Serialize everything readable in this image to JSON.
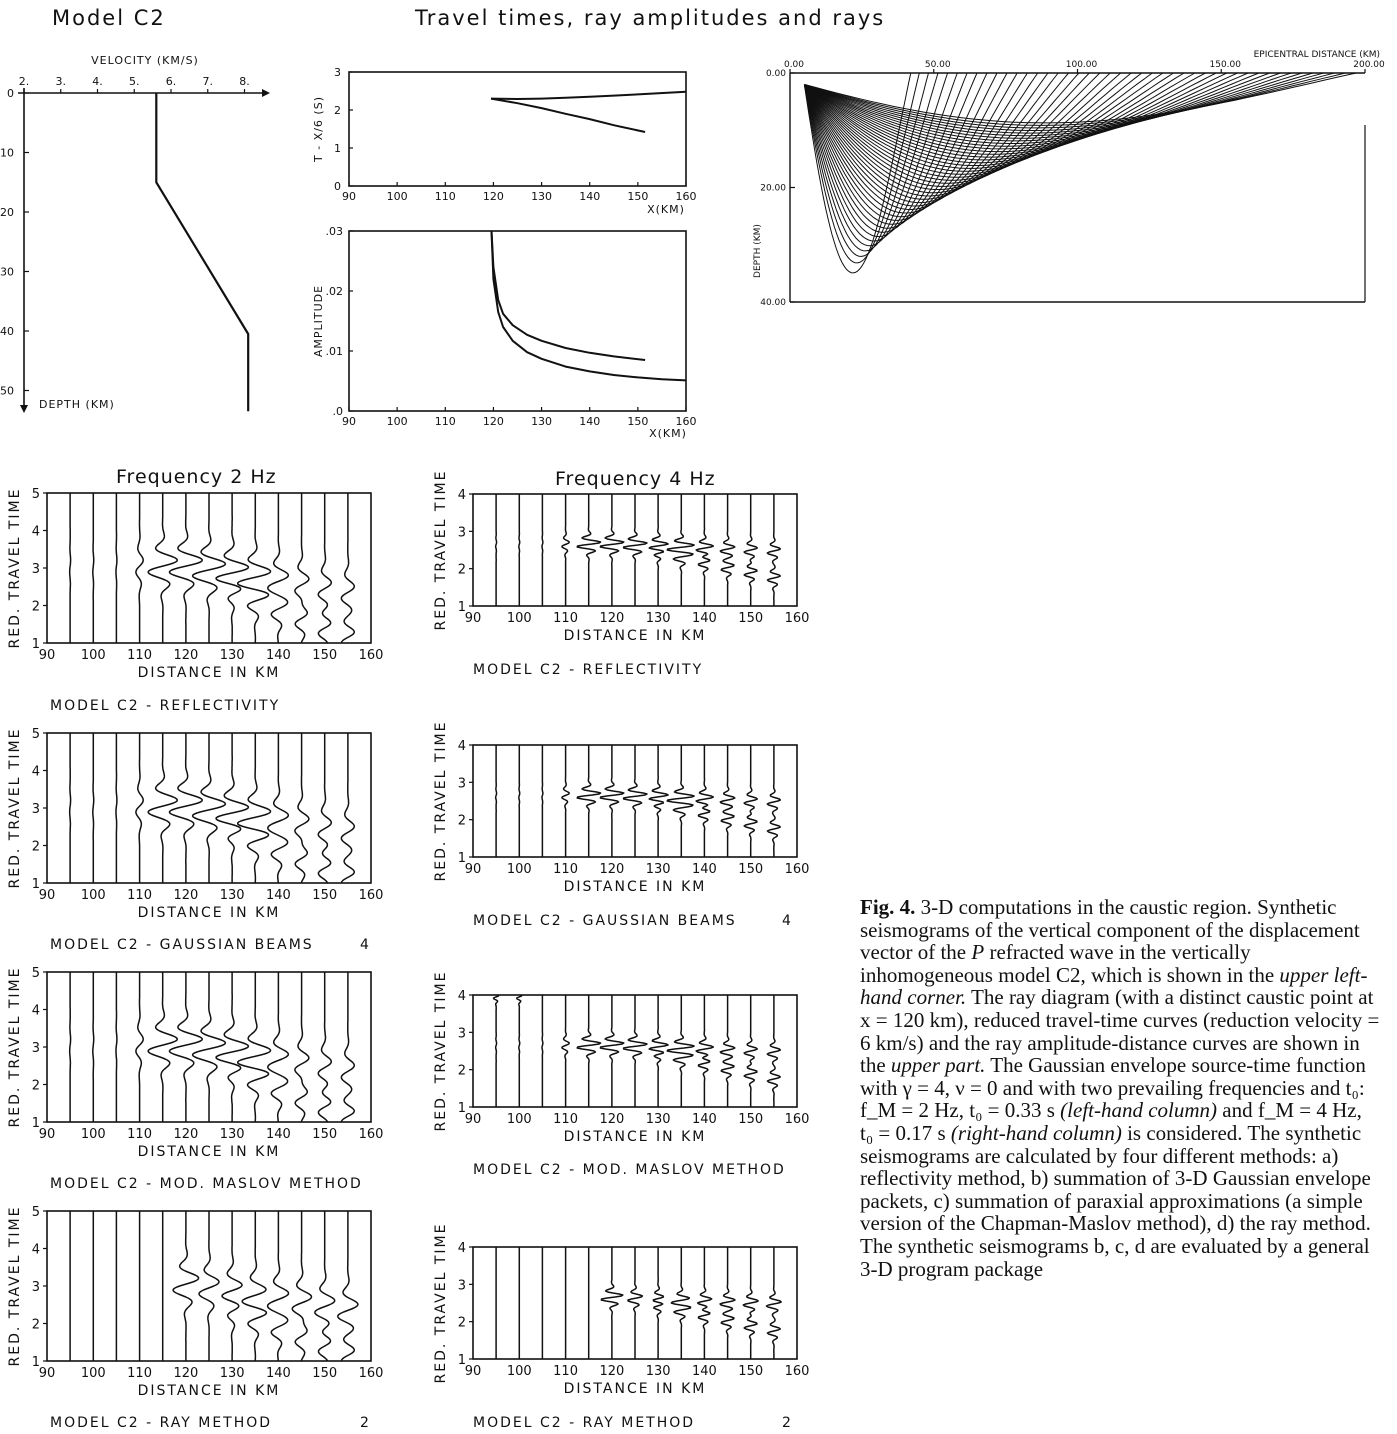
{
  "header": {
    "model_title": "Model C2",
    "main_title": "Travel times, ray amplitudes and rays"
  },
  "chart_data": [
    {
      "type": "line",
      "name": "velocity-depth profile",
      "title": "",
      "xlabel": "VELOCITY (KM/S)",
      "ylabel": "DEPTH (KM)",
      "xlim": [
        2,
        8.5
      ],
      "ylim": [
        0,
        52
      ],
      "x_ticks": [
        "2.",
        "3.",
        "4.",
        "5.",
        "6.",
        "7.",
        "8."
      ],
      "y_ticks": [
        "0",
        "10",
        "20",
        "30",
        "40",
        "50"
      ],
      "series": [
        {
          "x": [
            5.6,
            5.6,
            8.1,
            8.1
          ],
          "y": [
            0,
            15,
            40.5,
            53.5
          ]
        }
      ]
    },
    {
      "type": "line",
      "name": "reduced travel-time curves",
      "xlabel": "X(KM)",
      "ylabel": "T - X/6 (S)",
      "xlim": [
        90,
        160
      ],
      "ylim": [
        0,
        3
      ],
      "x_ticks": [
        "90",
        "100",
        "110",
        "120",
        "130",
        "140",
        "150",
        "160"
      ],
      "y_ticks": [
        "0",
        "1",
        "2",
        "3"
      ],
      "series": [
        {
          "x": [
            119.5,
            125,
            130,
            135,
            140,
            145,
            150,
            160
          ],
          "y": [
            2.3,
            2.29,
            2.3,
            2.32,
            2.35,
            2.38,
            2.41,
            2.48
          ]
        },
        {
          "x": [
            119.5,
            125,
            130,
            135,
            140,
            145,
            151.5
          ],
          "y": [
            2.3,
            2.18,
            2.05,
            1.9,
            1.76,
            1.6,
            1.42
          ]
        }
      ]
    },
    {
      "type": "line",
      "name": "ray amplitude-distance curves",
      "xlabel": "X(KM)",
      "ylabel": "AMPLITUDE",
      "xlim": [
        90,
        160
      ],
      "ylim": [
        0,
        0.03
      ],
      "x_ticks": [
        "90",
        "100",
        "110",
        "120",
        "130",
        "140",
        "150",
        "160"
      ],
      "y_ticks": [
        ".0",
        ".01",
        ".02",
        ".03"
      ],
      "series": [
        {
          "x": [
            119.6,
            120,
            121,
            122,
            124,
            127,
            130,
            135,
            140,
            145,
            151.5
          ],
          "y": [
            0.03,
            0.024,
            0.0185,
            0.0162,
            0.0143,
            0.0127,
            0.0117,
            0.0105,
            0.0097,
            0.0091,
            0.0085
          ]
        },
        {
          "x": [
            119.6,
            120,
            121,
            122,
            124,
            127,
            130,
            135,
            140,
            145,
            150,
            155,
            160
          ],
          "y": [
            0.03,
            0.022,
            0.0165,
            0.014,
            0.0117,
            0.0098,
            0.0087,
            0.0074,
            0.0066,
            0.006,
            0.0056,
            0.0053,
            0.0051
          ]
        }
      ]
    },
    {
      "type": "line",
      "name": "ray diagram",
      "xlabel": "EPICENTRAL DISTANCE (KM)",
      "ylabel": "DEPTH (KM)",
      "xlim": [
        0,
        200
      ],
      "ylim": [
        0,
        40
      ],
      "x_ticks": [
        "0.00",
        "50.00",
        "100.00",
        "150.00",
        "200.00"
      ],
      "y_ticks": [
        "0.00",
        "20.00",
        "40.00"
      ]
    }
  ],
  "freq_titles": {
    "left": "Frequency  2 Hz",
    "right": "Frequency  4 Hz"
  },
  "seismo_axis": {
    "ylabel": "RED. TRAVEL TIME",
    "xlabel": "DISTANCE IN KM",
    "x_ticks": [
      "90",
      "100",
      "110",
      "120",
      "130",
      "140",
      "150",
      "160"
    ],
    "y_ticks_left": [
      "1",
      "2",
      "3",
      "4",
      "5"
    ],
    "y_ticks_right": [
      "1",
      "2",
      "3",
      "4"
    ],
    "trace_distances_km": [
      95,
      100,
      105,
      110,
      115,
      120,
      125,
      130,
      135,
      140,
      145,
      150,
      155
    ]
  },
  "panels": {
    "L1": "MODEL C2 - REFLECTIVITY",
    "R1": "MODEL C2 - REFLECTIVITY",
    "L2": "MODEL C2 - GAUSSIAN BEAMS",
    "L2n": "4",
    "R2": "MODEL C2 - GAUSSIAN BEAMS",
    "R2n": "4",
    "L3": "MODEL C2 - MOD. MASLOV METHOD",
    "R3": "MODEL C2 - MOD. MASLOV METHOD",
    "L4": "MODEL C2 - RAY METHOD",
    "L4n": "2",
    "R4": "MODEL C2 - RAY METHOD",
    "R4n": "2"
  },
  "caption": {
    "bold": "Fig. 4.",
    "p1": " 3-D computations in the caustic region. Synthetic seismograms of the vertical component of the displacement vector of the ",
    "P": "P",
    "p2": " refracted wave in the vertically inhomogeneous model C2, which is shown in the ",
    "i1": "upper left-hand corner.",
    "p3": " The ray diagram (with a distinct caustic point at x = 120 km), reduced travel-time curves (reduction velocity  = 6 km/s) and the ray amplitude-distance curves are shown in the ",
    "i2": "upper part.",
    "p4": " The Gaussian envelope source-time function with γ = 4, ν = 0 and with two prevailing frequencies and t₀: f_M = 2 Hz, t₀ = 0.33 s ",
    "i3": "(left-hand column)",
    "p5": " and f_M = 4 Hz, t₀ = 0.17 s ",
    "i4": "(right-hand column)",
    "p6": " is considered. The synthetic seismograms are calculated by four different methods: a) reflectivity method, b) summation of 3-D Gaussian envelope packets, c) summation of paraxial approximations (a simple version of the Chapman-Maslov method), d) the ray method. The synthetic seismograms b, c, d are evaluated by a general 3-D program package"
  }
}
